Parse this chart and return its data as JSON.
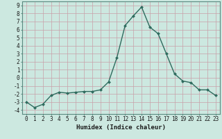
{
  "x": [
    0,
    1,
    2,
    3,
    4,
    5,
    6,
    7,
    8,
    9,
    10,
    11,
    12,
    13,
    14,
    15,
    16,
    17,
    18,
    19,
    20,
    21,
    22,
    23
  ],
  "y": [
    -3.0,
    -3.7,
    -3.3,
    -2.2,
    -1.8,
    -1.9,
    -1.8,
    -1.7,
    -1.7,
    -1.5,
    -0.5,
    2.5,
    6.5,
    7.7,
    8.8,
    6.3,
    5.5,
    3.0,
    0.5,
    -0.4,
    -0.6,
    -1.5,
    -1.5,
    -2.2
  ],
  "line_color": "#2e6b5e",
  "marker": "D",
  "marker_size": 2.0,
  "bg_color": "#cce8e0",
  "grid_color": "#c8a0a8",
  "xlabel": "Humidex (Indice chaleur)",
  "xlim": [
    -0.5,
    23.5
  ],
  "ylim": [
    -4.5,
    9.5
  ],
  "yticks": [
    -4,
    -3,
    -2,
    -1,
    0,
    1,
    2,
    3,
    4,
    5,
    6,
    7,
    8,
    9
  ],
  "xticks": [
    0,
    1,
    2,
    3,
    4,
    5,
    6,
    7,
    8,
    9,
    10,
    11,
    12,
    13,
    14,
    15,
    16,
    17,
    18,
    19,
    20,
    21,
    22,
    23
  ],
  "tick_fontsize": 5.5,
  "label_fontsize": 6.5,
  "line_width": 1.0,
  "spine_color": "#5a8a80"
}
